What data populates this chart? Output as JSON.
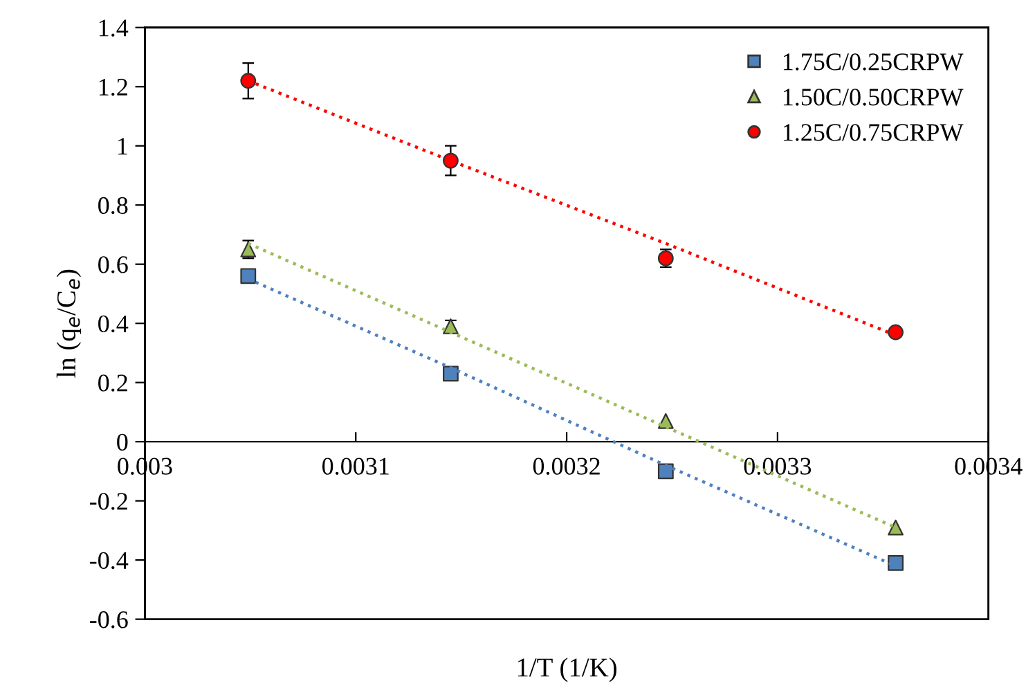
{
  "chart_data": {
    "type": "scatter",
    "xlabel": "1/T (1/K)",
    "ylabel": "ln (q$_{e}$/C$_{e}$)",
    "x": [
      0.003049,
      0.003145,
      0.003247,
      0.003356
    ],
    "series": [
      {
        "name": "1.75C/0.25CRPW",
        "color": "#4f81bd",
        "marker": "square",
        "values": [
          0.56,
          0.23,
          -0.1,
          -0.41
        ]
      },
      {
        "name": "1.50C/0.50CRPW",
        "color": "#9bbb59",
        "marker": "triangle",
        "values": [
          0.65,
          0.39,
          0.07,
          -0.29
        ],
        "errors": [
          0.03,
          0.02,
          null,
          null
        ]
      },
      {
        "name": "1.25C/0.75CRPW",
        "color": "#ff0000",
        "marker": "circle",
        "values": [
          1.22,
          0.95,
          0.62,
          0.37
        ],
        "errors": [
          0.06,
          0.05,
          0.03,
          null
        ]
      },
      {
        "type": "line",
        "color": "#4f81bd",
        "line_style": "dotted",
        "values": [
          0.55,
          0.25,
          -0.08,
          -0.42
        ]
      },
      {
        "type": "line",
        "color": "#9bbb59",
        "line_style": "dotted",
        "values": [
          0.67,
          0.37,
          0.05,
          -0.29
        ]
      },
      {
        "type": "line",
        "color": "#ff0000",
        "line_style": "dotted",
        "values": [
          1.22,
          0.95,
          0.67,
          0.36
        ]
      }
    ],
    "xlim": [
      0.003,
      0.0034
    ],
    "xticks": [
      0.003,
      0.0031,
      0.0032,
      0.0033,
      0.0034
    ],
    "ylim": [
      -0.6,
      1.4
    ],
    "yticks": [
      -0.6,
      -0.4,
      -0.2,
      0,
      0.2,
      0.4,
      0.6,
      0.8,
      1,
      1.2,
      1.4
    ],
    "grid": false,
    "legend": "top right"
  }
}
